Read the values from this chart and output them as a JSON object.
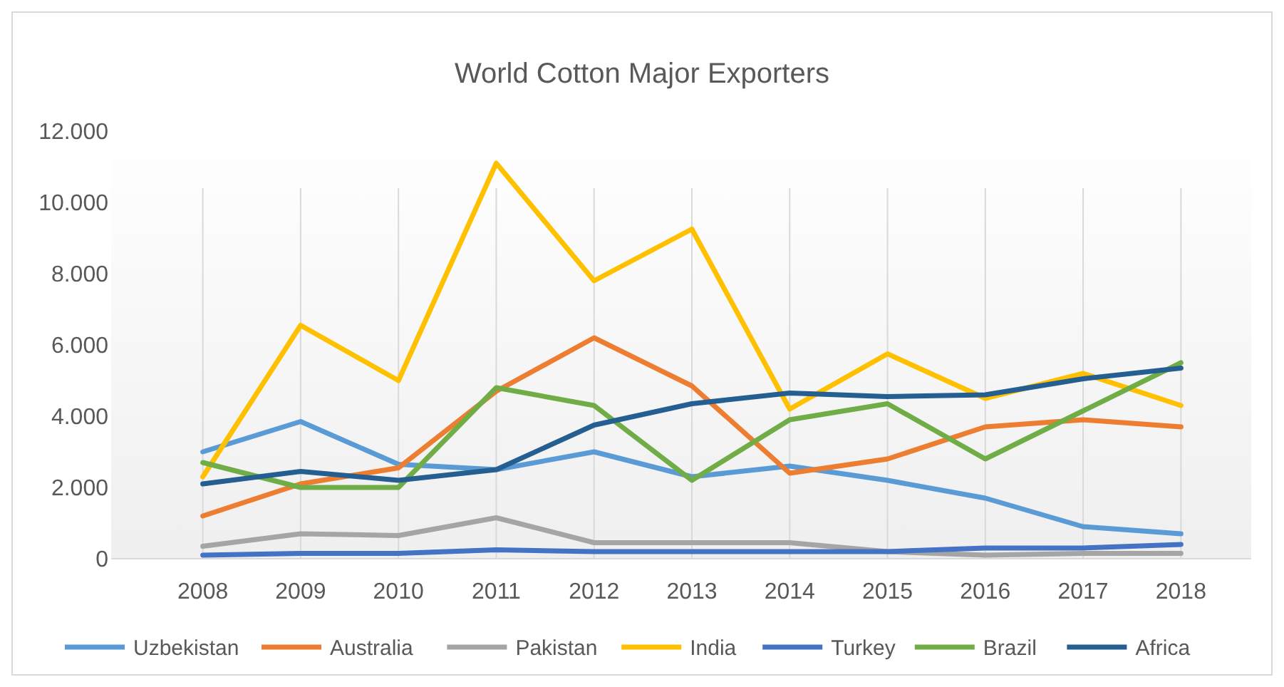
{
  "chart_data": {
    "type": "line",
    "title": "World Cotton Major Exporters",
    "categories": [
      "2008",
      "2009",
      "2010",
      "2011",
      "2012",
      "2013",
      "2014",
      "2015",
      "2016",
      "2017",
      "2018"
    ],
    "ylim": [
      0,
      12000
    ],
    "yticks": [
      {
        "value": 0,
        "label": "0"
      },
      {
        "value": 2000,
        "label": "2.000"
      },
      {
        "value": 4000,
        "label": "4.000"
      },
      {
        "value": 6000,
        "label": "6.000"
      },
      {
        "value": 8000,
        "label": "8.000"
      },
      {
        "value": 10000,
        "label": "10.000"
      },
      {
        "value": 12000,
        "label": "12.000"
      }
    ],
    "grid": "x",
    "legend": "bottom",
    "marker": "none",
    "line_style": "solid",
    "series": [
      {
        "name": "Uzbekistan",
        "color": "#5b9bd5",
        "values": [
          3000,
          3850,
          2650,
          2500,
          3000,
          2300,
          2600,
          2200,
          1700,
          900,
          700
        ]
      },
      {
        "name": "Australia",
        "color": "#ed7d31",
        "values": [
          1200,
          2100,
          2550,
          4700,
          6200,
          4850,
          2400,
          2800,
          3700,
          3900,
          3700
        ]
      },
      {
        "name": "Pakistan",
        "color": "#a5a5a5",
        "values": [
          350,
          700,
          650,
          1150,
          450,
          450,
          450,
          200,
          100,
          150,
          150
        ]
      },
      {
        "name": "India",
        "color": "#ffc000",
        "values": [
          2300,
          6550,
          5000,
          11100,
          7800,
          9250,
          4200,
          5750,
          4500,
          5200,
          4300
        ]
      },
      {
        "name": "Turkey",
        "color": "#4472c4",
        "values": [
          100,
          150,
          150,
          250,
          200,
          200,
          200,
          200,
          300,
          300,
          400
        ]
      },
      {
        "name": "Brazil",
        "color": "#70ad47",
        "values": [
          2700,
          2000,
          2000,
          4800,
          4300,
          2200,
          3900,
          4350,
          2800,
          4150,
          5500
        ]
      },
      {
        "name": "Africa",
        "color": "#255e91",
        "values": [
          2100,
          2450,
          2200,
          2500,
          3750,
          4350,
          4650,
          4550,
          4600,
          5050,
          5350
        ]
      }
    ]
  }
}
